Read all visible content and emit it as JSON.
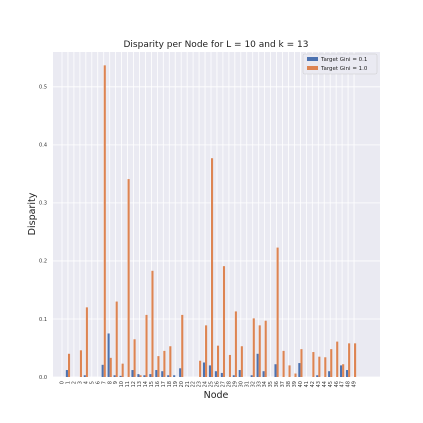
{
  "chart_data": {
    "type": "bar",
    "title": "Disparity per Node for L = 10 and k = 13",
    "xlabel": "Node",
    "ylabel": "Disparity",
    "ylim": [
      0,
      0.56
    ],
    "yticks": [
      "0.0",
      "0.1",
      "0.2",
      "0.3",
      "0.4",
      "0.5"
    ],
    "grid": "on",
    "legend_position": "top-right",
    "categories": [
      "0",
      "1",
      "2",
      "3",
      "4",
      "5",
      "6",
      "7",
      "8",
      "9",
      "10",
      "11",
      "12",
      "13",
      "14",
      "15",
      "16",
      "17",
      "18",
      "19",
      "20",
      "21",
      "22",
      "23",
      "24",
      "25",
      "26",
      "27",
      "28",
      "29",
      "30",
      "31",
      "32",
      "33",
      "34",
      "35",
      "36",
      "37",
      "38",
      "39",
      "40",
      "41",
      "42",
      "43",
      "44",
      "45",
      "46",
      "47",
      "48",
      "49"
    ],
    "series": [
      {
        "name": "Target Gini = 0.1",
        "color": "#4c72b0",
        "values": [
          0,
          0.012,
          0,
          0,
          0.003,
          0,
          0,
          0.021,
          0.075,
          0.003,
          0.002,
          0,
          0.012,
          0.005,
          0.003,
          0.005,
          0.012,
          0.01,
          0.003,
          0.003,
          0.015,
          0,
          0,
          0,
          0.025,
          0.02,
          0.01,
          0.007,
          0,
          0.003,
          0.012,
          0,
          0.003,
          0.04,
          0.01,
          0,
          0.022,
          0,
          0,
          0,
          0.024,
          0,
          0,
          0.003,
          0,
          0.01,
          0,
          0.02,
          0.012,
          0
        ]
      },
      {
        "name": "Target Gini = 1.0",
        "color": "#dd8452",
        "values": [
          0,
          0.04,
          0,
          0.046,
          0.12,
          0,
          0,
          0.537,
          0.033,
          0.13,
          0.023,
          0.341,
          0.065,
          0.003,
          0.107,
          0.183,
          0.036,
          0.045,
          0.053,
          0,
          0.107,
          0,
          0,
          0.028,
          0.089,
          0.377,
          0.054,
          0.191,
          0.038,
          0.113,
          0.053,
          0,
          0.101,
          0.089,
          0.097,
          0,
          0.223,
          0.045,
          0.02,
          0.006,
          0.048,
          0,
          0.043,
          0.035,
          0.034,
          0.048,
          0.061,
          0.022,
          0.058,
          0.058
        ]
      }
    ]
  }
}
